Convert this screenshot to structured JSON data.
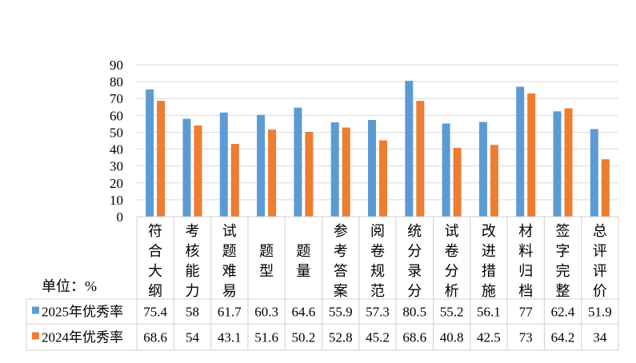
{
  "chart_data": {
    "type": "bar",
    "unit_label": "单位：%",
    "categories": [
      "符合大纲",
      "考核能力",
      "试题难易",
      "题型",
      "题量",
      "参考答案",
      "阅卷规范",
      "统分录分",
      "试卷分析",
      "改进措施",
      "材料归档",
      "签字完整",
      "总评评价"
    ],
    "series": [
      {
        "name": "2025年优秀率",
        "color": "#5B9BD5",
        "values": [
          75.4,
          58,
          61.7,
          60.3,
          64.6,
          55.9,
          57.3,
          80.5,
          55.2,
          56.1,
          77,
          62.4,
          51.9
        ]
      },
      {
        "name": "2024年优秀率",
        "color": "#ED7D31",
        "values": [
          68.6,
          54,
          43.1,
          51.6,
          50.2,
          52.8,
          45.2,
          68.6,
          40.8,
          42.5,
          73,
          64.2,
          34
        ]
      }
    ],
    "ylim": [
      0,
      90
    ],
    "yticks": [
      0,
      10,
      20,
      30,
      40,
      50,
      60,
      70,
      80,
      90
    ],
    "grid": true,
    "legend": "data-table"
  }
}
